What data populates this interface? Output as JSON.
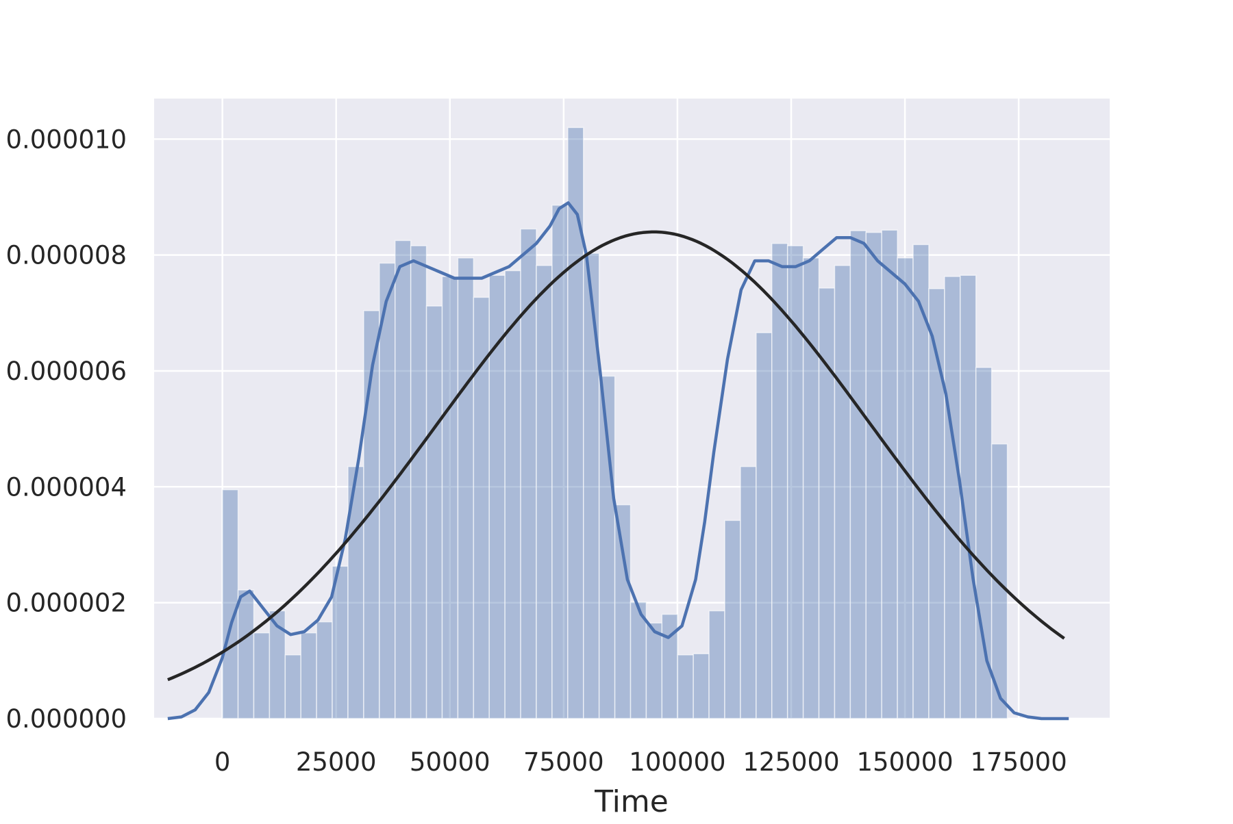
{
  "chart_data": {
    "type": "bar",
    "subtype": "histogram with kde and fitted normal curve",
    "title": "",
    "xlabel": "Time",
    "ylabel": "",
    "xlim": [
      -15000,
      195000
    ],
    "ylim": [
      0,
      1.07e-05
    ],
    "x_ticks": [
      0,
      25000,
      50000,
      75000,
      100000,
      125000,
      150000,
      175000
    ],
    "y_ticks": [
      0,
      2e-06,
      4e-06,
      6e-06,
      8e-06,
      1e-05
    ],
    "y_tick_labels": [
      "0.000000",
      "0.000002",
      "0.000004",
      "0.000006",
      "0.000008",
      "0.000010"
    ],
    "grid": true,
    "legend": "none",
    "colors": {
      "background": "#eaeaf2",
      "grid": "#ffffff",
      "bars": "#4c72b0",
      "kde": "#4c72b0",
      "normal_fit": "#262626"
    },
    "histogram": {
      "bin_width": 3450,
      "bin_start": 0,
      "density": [
        3.95e-06,
        2.22e-06,
        1.48e-06,
        1.86e-06,
        1.1e-06,
        1.48e-06,
        1.67e-06,
        2.63e-06,
        4.35e-06,
        7.04e-06,
        7.86e-06,
        8.25e-06,
        8.16e-06,
        7.12e-06,
        7.63e-06,
        7.95e-06,
        7.27e-06,
        7.65e-06,
        7.73e-06,
        8.45e-06,
        7.82e-06,
        8.86e-06,
        1.02e-05,
        8.03e-06,
        5.91e-06,
        3.69e-06,
        2.01e-06,
        1.65e-06,
        1.8e-06,
        1.1e-06,
        1.12e-06,
        1.86e-06,
        3.42e-06,
        4.35e-06,
        6.66e-06,
        8.2e-06,
        8.16e-06,
        7.95e-06,
        7.43e-06,
        7.82e-06,
        8.42e-06,
        8.39e-06,
        8.43e-06,
        7.95e-06,
        8.18e-06,
        7.42e-06,
        7.63e-06,
        7.65e-06,
        6.06e-06,
        4.74e-06
      ]
    },
    "kde": {
      "x": [
        -12000,
        -9000,
        -6000,
        -3000,
        0,
        2000,
        4000,
        6000,
        9000,
        12000,
        15000,
        18000,
        21000,
        24000,
        27000,
        30000,
        33000,
        36000,
        39000,
        42000,
        45000,
        48000,
        51000,
        54000,
        57000,
        60000,
        63000,
        66000,
        69000,
        72000,
        74000,
        76000,
        78000,
        80000,
        83000,
        86000,
        89000,
        92000,
        95000,
        98000,
        101000,
        104000,
        106000,
        108000,
        111000,
        114000,
        117000,
        120000,
        123000,
        126000,
        129000,
        132000,
        135000,
        138000,
        141000,
        144000,
        147000,
        150000,
        153000,
        156000,
        159000,
        162000,
        165000,
        168000,
        171000,
        174000,
        177000,
        180000,
        183000,
        186000
      ],
      "y": [
        0,
        3e-08,
        1.5e-07,
        4.5e-07,
        1.05e-06,
        1.65e-06,
        2.1e-06,
        2.2e-06,
        1.9e-06,
        1.6e-06,
        1.45e-06,
        1.5e-06,
        1.7e-06,
        2.1e-06,
        3.1e-06,
        4.5e-06,
        6.1e-06,
        7.2e-06,
        7.8e-06,
        7.9e-06,
        7.8e-06,
        7.7e-06,
        7.6e-06,
        7.6e-06,
        7.6e-06,
        7.7e-06,
        7.8e-06,
        8e-06,
        8.2e-06,
        8.5e-06,
        8.8e-06,
        8.9e-06,
        8.7e-06,
        8e-06,
        6e-06,
        3.8e-06,
        2.4e-06,
        1.8e-06,
        1.5e-06,
        1.4e-06,
        1.6e-06,
        2.4e-06,
        3.4e-06,
        4.6e-06,
        6.2e-06,
        7.4e-06,
        7.9e-06,
        7.9e-06,
        7.8e-06,
        7.8e-06,
        7.9e-06,
        8.1e-06,
        8.3e-06,
        8.3e-06,
        8.2e-06,
        7.9e-06,
        7.7e-06,
        7.5e-06,
        7.2e-06,
        6.6e-06,
        5.6e-06,
        4.1e-06,
        2.4e-06,
        1e-06,
        3.5e-07,
        1e-07,
        3e-08,
        0,
        0,
        0
      ]
    },
    "normal_fit": {
      "mean": 94800,
      "std": 47500,
      "x_range": [
        -12000,
        185000
      ]
    }
  }
}
